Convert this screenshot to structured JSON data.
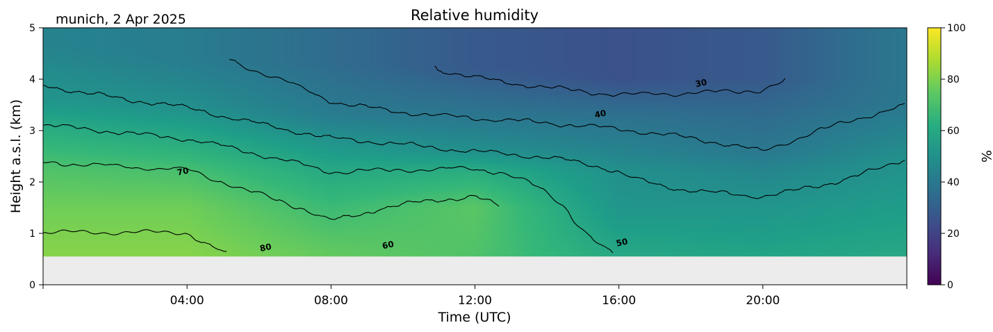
{
  "chart_data": {
    "type": "heatmap",
    "title": "Relative humidity",
    "subtitle": "munich, 2 Apr 2025",
    "xlabel": "Time (UTC)",
    "ylabel": "Height a.s.l. (km)",
    "xlim": [
      "00:00",
      "24:00"
    ],
    "ylim": [
      0,
      5
    ],
    "xticks": [
      "04:00",
      "08:00",
      "12:00",
      "16:00",
      "20:00"
    ],
    "yticks": [
      "0",
      "1",
      "2",
      "3",
      "4",
      "5"
    ],
    "colorbar": {
      "label": "%",
      "range": [
        0,
        100
      ],
      "ticks": [
        "0",
        "20",
        "40",
        "60",
        "80",
        "100"
      ],
      "colormap": "viridis"
    },
    "data_floor_km": 0.55,
    "no_data_color": "#ececec",
    "contour_levels": [
      30,
      40,
      50,
      60,
      70,
      80
    ],
    "contour_labels": [
      {
        "text": "70",
        "time_h": 3.9,
        "height_km": 2.15
      },
      {
        "text": "80",
        "time_h": 6.2,
        "height_km": 0.67
      },
      {
        "text": "60",
        "time_h": 9.6,
        "height_km": 0.72
      },
      {
        "text": "40",
        "time_h": 15.5,
        "height_km": 3.27
      },
      {
        "text": "50",
        "time_h": 16.1,
        "height_km": 0.77
      },
      {
        "text": "30",
        "time_h": 18.3,
        "height_km": 3.87
      }
    ],
    "profiles": [
      {
        "time_h": 0,
        "heights_km": [
          0.55,
          1.5,
          2.25,
          3.0,
          3.6,
          4.65
        ],
        "values": [
          82,
          78,
          72,
          62,
          52,
          45
        ]
      },
      {
        "time_h": 4,
        "heights_km": [
          0.55,
          1.5,
          2.25,
          2.85,
          3.45,
          4.4
        ],
        "values": [
          82,
          78,
          70,
          60,
          50,
          42
        ]
      },
      {
        "time_h": 8,
        "heights_km": [
          0.55,
          1.5,
          2.2,
          2.75,
          3.3,
          4.3
        ],
        "values": [
          76,
          68,
          60,
          52,
          42,
          35
        ]
      },
      {
        "time_h": 12,
        "heights_km": [
          0.55,
          1.5,
          2.2,
          2.6,
          3.25,
          4.2
        ],
        "values": [
          72,
          74,
          62,
          50,
          40,
          28
        ]
      },
      {
        "time_h": 16,
        "heights_km": [
          0.55,
          1.5,
          2.2,
          2.6,
          3.3,
          4.0
        ],
        "values": [
          60,
          52,
          50,
          45,
          37,
          25
        ]
      },
      {
        "time_h": 20,
        "heights_km": [
          0.55,
          1.5,
          2.2,
          2.6,
          3.5,
          4.0
        ],
        "values": [
          58,
          52,
          46,
          40,
          33,
          28
        ]
      },
      {
        "time_h": 24,
        "heights_km": [
          0.55,
          1.5,
          2.5,
          3.0,
          3.5,
          4.8
        ],
        "values": [
          60,
          55,
          50,
          45,
          40,
          40
        ]
      }
    ]
  }
}
